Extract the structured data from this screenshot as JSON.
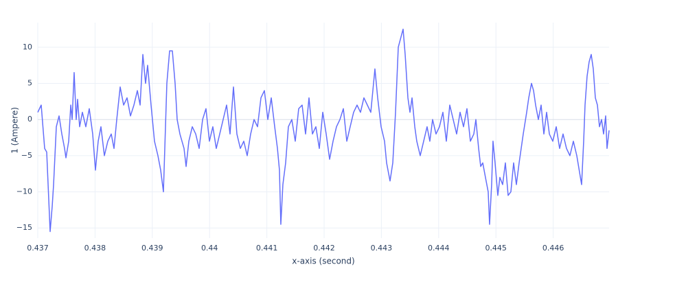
{
  "chart_data": {
    "type": "line",
    "xlabel": "x-axis (second)",
    "ylabel": "1 (Ampere)",
    "xlim": [
      0.437,
      0.446976
    ],
    "ylim": [
      -16.4,
      13.4
    ],
    "xticks": [
      0.437,
      0.438,
      0.439,
      0.44,
      0.441,
      0.442,
      0.443,
      0.444,
      0.445,
      0.446
    ],
    "yticks": [
      {
        "value": -15,
        "label": "−15"
      },
      {
        "value": -10,
        "label": "−10"
      },
      {
        "value": -5,
        "label": "−5"
      },
      0,
      5,
      10
    ],
    "grid": true,
    "series": [
      {
        "color": "#636efa",
        "x": [
          0.437,
          0.43706,
          0.43712,
          0.437156,
          0.437216,
          0.437252,
          0.437276,
          0.437324,
          0.437372,
          0.43742,
          0.437468,
          0.437492,
          0.43754,
          0.437576,
          0.4376,
          0.437635,
          0.437671,
          0.437695,
          0.437731,
          0.437779,
          0.437839,
          0.437899,
          0.437959,
          0.438007,
          0.438055,
          0.438103,
          0.438163,
          0.438223,
          0.438283,
          0.438331,
          0.438379,
          0.438439,
          0.438499,
          0.438559,
          0.438619,
          0.438679,
          0.438739,
          0.438787,
          0.438835,
          0.438882,
          0.438918,
          0.438978,
          0.439038,
          0.439098,
          0.439146,
          0.439194,
          0.439218,
          0.439254,
          0.439302,
          0.43935,
          0.439398,
          0.439434,
          0.439482,
          0.439554,
          0.43959,
          0.439638,
          0.439698,
          0.439758,
          0.439818,
          0.439878,
          0.439937,
          0.439997,
          0.440057,
          0.440117,
          0.440177,
          0.440237,
          0.440297,
          0.440357,
          0.440417,
          0.440477,
          0.440537,
          0.440597,
          0.440657,
          0.440717,
          0.440777,
          0.440837,
          0.440897,
          0.440957,
          0.441017,
          0.441077,
          0.441137,
          0.441185,
          0.44122,
          0.441244,
          0.44128,
          0.441328,
          0.441376,
          0.441436,
          0.441496,
          0.441556,
          0.441616,
          0.441676,
          0.441736,
          0.441796,
          0.441856,
          0.441916,
          0.441976,
          0.442036,
          0.442096,
          0.442156,
          0.442216,
          0.442276,
          0.442336,
          0.442396,
          0.442455,
          0.442515,
          0.442575,
          0.442635,
          0.442695,
          0.442755,
          0.442815,
          0.442851,
          0.442887,
          0.442935,
          0.442995,
          0.443055,
          0.443091,
          0.443151,
          0.443199,
          0.443247,
          0.443295,
          0.443379,
          0.443415,
          0.443439,
          0.443463,
          0.443499,
          0.443535,
          0.443583,
          0.443618,
          0.443678,
          0.443738,
          0.443798,
          0.443846,
          0.443894,
          0.443954,
          0.444014,
          0.444074,
          0.444134,
          0.444194,
          0.444254,
          0.444314,
          0.444374,
          0.444434,
          0.444494,
          0.444554,
          0.444614,
          0.44465,
          0.444698,
          0.444734,
          0.44477,
          0.444817,
          0.444865,
          0.444889,
          0.444925,
          0.444949,
          0.444985,
          0.445033,
          0.445069,
          0.445117,
          0.445165,
          0.445213,
          0.445261,
          0.445309,
          0.445357,
          0.445405,
          0.445477,
          0.445537,
          0.445573,
          0.445621,
          0.445657,
          0.445693,
          0.445741,
          0.445789,
          0.445837,
          0.445885,
          0.445933,
          0.445993,
          0.446053,
          0.446112,
          0.446172,
          0.446232,
          0.446292,
          0.446352,
          0.446412,
          0.446496,
          0.446532,
          0.446556,
          0.446592,
          0.446628,
          0.446664,
          0.4467,
          0.446736,
          0.446772,
          0.446808,
          0.446844,
          0.44688,
          0.446916,
          0.44694,
          0.446976
        ],
        "values": [
          1,
          2,
          -4,
          -4.5,
          -15.5,
          -12,
          -9,
          -1,
          0.5,
          -2,
          -4,
          -5.3,
          -3,
          2,
          0,
          6.5,
          0,
          2.8,
          -1,
          1,
          -1,
          1.5,
          -2,
          -7,
          -3,
          -1,
          -5,
          -3,
          -2,
          -4,
          0,
          4.5,
          2,
          3,
          0.5,
          2,
          4,
          2,
          9,
          5,
          7.5,
          2,
          -3,
          -5,
          -7,
          -10,
          -4,
          5,
          9.5,
          9.5,
          5,
          0,
          -2,
          -4,
          -6.5,
          -3,
          -1,
          -2,
          -4,
          0,
          1.5,
          -3,
          -1,
          -4,
          -2,
          0,
          2,
          -2,
          4.5,
          -2,
          -4,
          -3,
          -5,
          -2,
          0,
          -1,
          3,
          4,
          0,
          3,
          -1,
          -4,
          -7,
          -14.5,
          -9,
          -6,
          -1,
          0,
          -3,
          1.5,
          2,
          -2,
          3,
          -2,
          -1,
          -4,
          1,
          -2,
          -5.5,
          -3,
          -1,
          0,
          1.5,
          -3,
          -1,
          1,
          2,
          1,
          3,
          2,
          1,
          4,
          7,
          3,
          -1,
          -3,
          -6,
          -8.5,
          -6,
          1,
          10,
          12.5,
          9,
          6,
          3,
          1,
          3,
          -1,
          -3,
          -5,
          -3,
          -1,
          -3,
          0,
          -2,
          -1,
          1,
          -3,
          2,
          0,
          -2,
          1,
          -1,
          1.5,
          -3,
          -2,
          0,
          -4,
          -6.5,
          -6,
          -8,
          -10,
          -14.5,
          -9,
          -3,
          -6,
          -10.5,
          -8,
          -9,
          -6,
          -10.5,
          -10,
          -6,
          -9,
          -6,
          -2,
          1,
          3,
          5,
          4,
          2,
          0,
          2,
          -2,
          1,
          -2,
          -3,
          -1,
          -4,
          -2,
          -4,
          -5,
          -3,
          -5,
          -9,
          -3,
          2,
          6,
          8,
          9,
          7,
          3,
          2,
          -1,
          0,
          -2,
          0.5,
          -4,
          -1.5
        ]
      }
    ]
  }
}
